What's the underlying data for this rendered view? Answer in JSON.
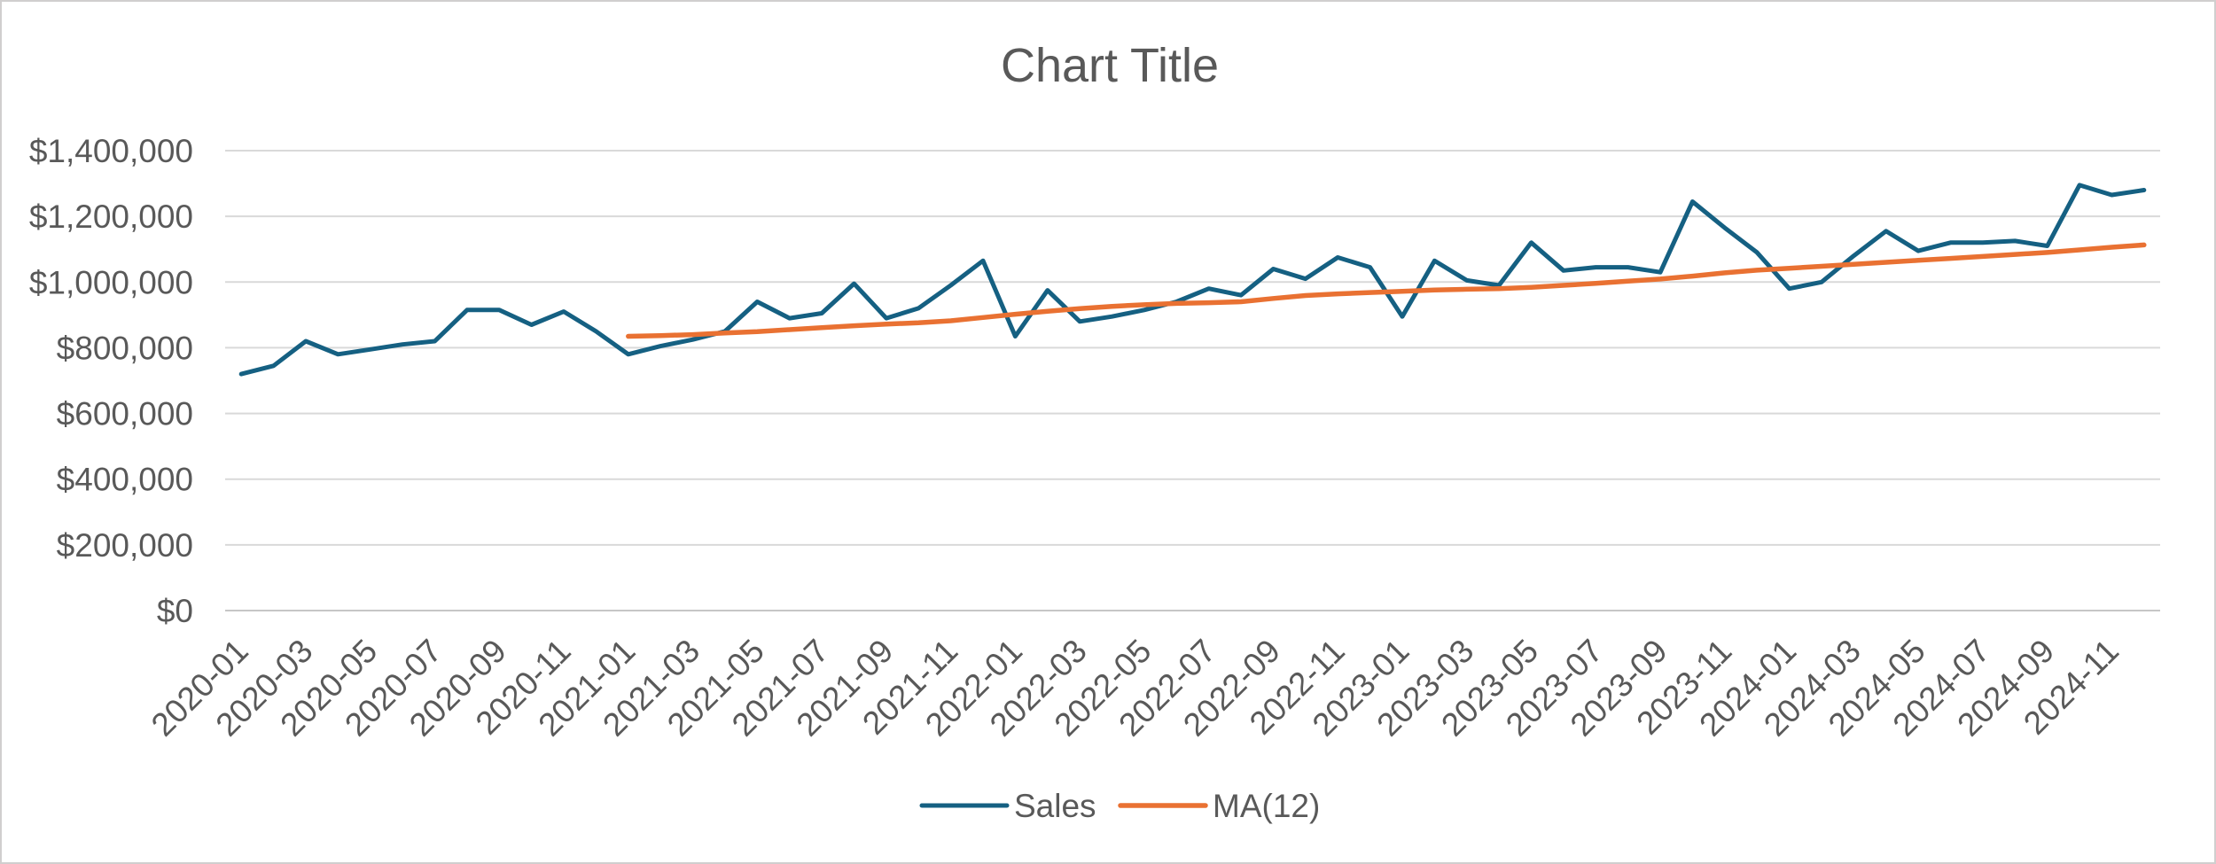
{
  "window": {
    "background": "#FFFFFF",
    "border_color": "#D0CECE"
  },
  "chart_data": {
    "type": "line",
    "title": "Chart Title",
    "title_color": "#595959",
    "axis_text_color": "#595959",
    "grid_color": "#D9D9D9",
    "zero_line_color": "#C6C6C6",
    "grid": true,
    "legend_position": "bottom",
    "xlabel": "",
    "ylabel": "",
    "ylim": [
      0,
      1400000
    ],
    "ytick_step": 200000,
    "ytick_labels": [
      "$0",
      "$200,000",
      "$400,000",
      "$600,000",
      "$800,000",
      "$1,000,000",
      "$1,200,000",
      "$1,400,000"
    ],
    "x_tick_every": 2,
    "x": [
      "2020-01",
      "2020-02",
      "2020-03",
      "2020-04",
      "2020-05",
      "2020-06",
      "2020-07",
      "2020-08",
      "2020-09",
      "2020-10",
      "2020-11",
      "2020-12",
      "2021-01",
      "2021-02",
      "2021-03",
      "2021-04",
      "2021-05",
      "2021-06",
      "2021-07",
      "2021-08",
      "2021-09",
      "2021-10",
      "2021-11",
      "2021-12",
      "2022-01",
      "2022-02",
      "2022-03",
      "2022-04",
      "2022-05",
      "2022-06",
      "2022-07",
      "2022-08",
      "2022-09",
      "2022-10",
      "2022-11",
      "2022-12",
      "2023-01",
      "2023-02",
      "2023-03",
      "2023-04",
      "2023-05",
      "2023-06",
      "2023-07",
      "2023-08",
      "2023-09",
      "2023-10",
      "2023-11",
      "2023-12",
      "2024-01",
      "2024-02",
      "2024-03",
      "2024-04",
      "2024-05",
      "2024-06",
      "2024-07",
      "2024-08",
      "2024-09",
      "2024-10",
      "2024-11",
      "2024-12"
    ],
    "series": [
      {
        "name": "Sales",
        "color": "#156082",
        "stroke_width": 5,
        "values": [
          720000,
          745000,
          820000,
          780000,
          795000,
          810000,
          820000,
          915000,
          915000,
          870000,
          910000,
          850000,
          780000,
          805000,
          825000,
          850000,
          940000,
          890000,
          905000,
          995000,
          890000,
          920000,
          990000,
          1065000,
          835000,
          975000,
          880000,
          895000,
          915000,
          940000,
          980000,
          960000,
          1040000,
          1010000,
          1075000,
          1045000,
          895000,
          1065000,
          1005000,
          990000,
          1120000,
          1035000,
          1045000,
          1045000,
          1030000,
          1245000,
          1165000,
          1090000,
          980000,
          1000000,
          1080000,
          1155000,
          1095000,
          1120000,
          1120000,
          1125000,
          1110000,
          1295000,
          1265000,
          1280000
        ]
      },
      {
        "name": "MA(12)",
        "color": "#E97132",
        "stroke_width": 5.5,
        "values": [
          null,
          null,
          null,
          null,
          null,
          null,
          null,
          null,
          null,
          null,
          null,
          null,
          835000,
          837000,
          840000,
          845000,
          849000,
          855000,
          861000,
          867000,
          872000,
          876000,
          882000,
          892000,
          902000,
          911000,
          919000,
          926000,
          931000,
          935000,
          937000,
          940000,
          950000,
          959000,
          964000,
          968000,
          972000,
          976000,
          978000,
          980000,
          984000,
          990000,
          996000,
          1003000,
          1009000,
          1018000,
          1028000,
          1036000,
          1042000,
          1048000,
          1054000,
          1060000,
          1066000,
          1072000,
          1078000,
          1084000,
          1090000,
          1098000,
          1106000,
          1113000
        ]
      }
    ]
  }
}
